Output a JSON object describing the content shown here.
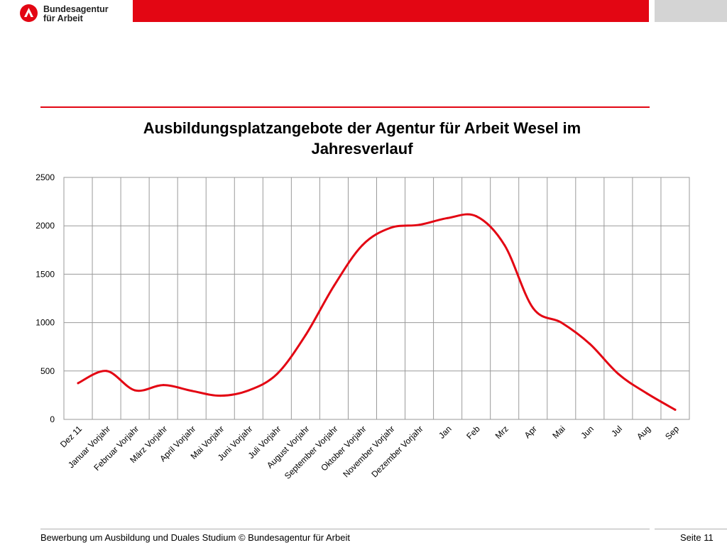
{
  "header": {
    "logo_line1": "Bundesagentur",
    "logo_line2": "für Arbeit",
    "brand_color": "#e30613"
  },
  "chart_data": {
    "type": "line",
    "title_line1": "Ausbildungsplatzangebote der Agentur für Arbeit Wesel im",
    "title_line2": "Jahresverlauf",
    "categories": [
      "Dez 11",
      "Januar Vorjahr",
      "Februar Vorjahr",
      "März Vorjahr",
      "April Vorjahr",
      "Mai Vorjahr",
      "Juni Vorjahr",
      "Juli Vorjahr",
      "August Vorjahr",
      "September Vorjahr",
      "Oktober Vorjahr",
      "November Vorjahr",
      "Dezember Vorjahr",
      "Jan",
      "Feb",
      "Mrz",
      "Apr",
      "Mai",
      "Jun",
      "Jul",
      "Aug",
      "Sep"
    ],
    "series": [
      {
        "values": [
          375,
          500,
          300,
          355,
          295,
          245,
          300,
          470,
          870,
          1380,
          1800,
          1980,
          2010,
          2080,
          2100,
          1800,
          1150,
          1000,
          780,
          470,
          270,
          100
        ],
        "color": "#e30613"
      }
    ],
    "ylim": [
      0,
      2500
    ],
    "yticks": [
      0,
      500,
      1000,
      1500,
      2000,
      2500
    ],
    "grid": true,
    "legend": "none"
  },
  "footer": {
    "text": "Bewerbung um Ausbildung und Duales Studium  © Bundesagentur für Arbeit",
    "page": "Seite 11"
  }
}
